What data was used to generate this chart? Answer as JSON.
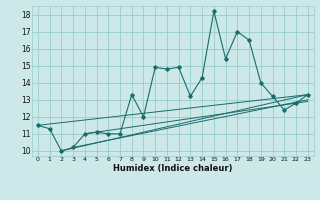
{
  "title": "",
  "xlabel": "Humidex (Indice chaleur)",
  "ylabel": "",
  "bg_color": "#cce8e8",
  "grid_color": "#99cccc",
  "line_color": "#1a6b6b",
  "xlim": [
    -0.5,
    23.5
  ],
  "ylim": [
    9.7,
    18.5
  ],
  "yticks": [
    10,
    11,
    12,
    13,
    14,
    15,
    16,
    17,
    18
  ],
  "xticks": [
    0,
    1,
    2,
    3,
    4,
    5,
    6,
    7,
    8,
    9,
    10,
    11,
    12,
    13,
    14,
    15,
    16,
    17,
    18,
    19,
    20,
    21,
    22,
    23
  ],
  "series": [
    [
      0,
      11.5
    ],
    [
      1,
      11.3
    ],
    [
      2,
      10.0
    ],
    [
      3,
      10.2
    ],
    [
      4,
      11.0
    ],
    [
      5,
      11.1
    ],
    [
      6,
      11.0
    ],
    [
      7,
      11.0
    ],
    [
      8,
      13.3
    ],
    [
      9,
      12.0
    ],
    [
      10,
      14.9
    ],
    [
      11,
      14.8
    ],
    [
      12,
      14.9
    ],
    [
      13,
      13.2
    ],
    [
      14,
      14.3
    ],
    [
      15,
      18.2
    ],
    [
      16,
      15.4
    ],
    [
      17,
      17.0
    ],
    [
      18,
      16.5
    ],
    [
      19,
      14.0
    ],
    [
      20,
      13.2
    ],
    [
      21,
      12.4
    ],
    [
      22,
      12.8
    ],
    [
      23,
      13.3
    ]
  ],
  "linear_series": [
    [
      [
        0,
        11.5
      ],
      [
        23,
        13.3
      ]
    ],
    [
      [
        2,
        10.0
      ],
      [
        23,
        13.3
      ]
    ],
    [
      [
        3,
        10.2
      ],
      [
        23,
        13.0
      ]
    ],
    [
      [
        4,
        11.0
      ],
      [
        23,
        12.9
      ]
    ]
  ]
}
